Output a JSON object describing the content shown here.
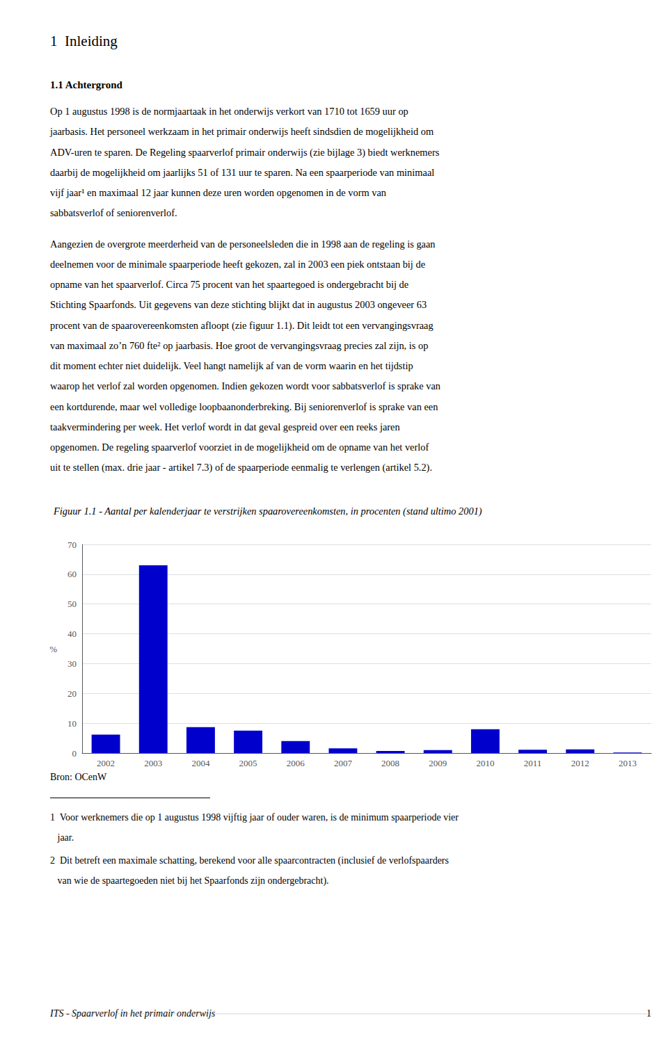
{
  "chart_data": {
    "type": "bar",
    "title": "Figuur 1.1 - Aantal per kalenderjaar te verstrijken spaarovereenkomsten, in procenten (stand ultimo 2001)",
    "categories": [
      "2002",
      "2003",
      "2004",
      "2005",
      "2006",
      "2007",
      "2008",
      "2009",
      "2010",
      "2011",
      "2012",
      "2013"
    ],
    "values": [
      6.2,
      63.0,
      8.7,
      7.5,
      4.0,
      1.6,
      0.7,
      1.0,
      8.0,
      1.1,
      1.2,
      0.2
    ],
    "color": "#0000cc",
    "ylabel": "%",
    "ylim": [
      0,
      70
    ],
    "yticks": [
      0,
      10,
      20,
      30,
      40,
      50,
      60,
      70
    ],
    "grid": true,
    "annotations": [
      "1  Inleiding",
      "1.1 Achtergrond",
      "Op 1 augustus 1998 is de normjaartaak in het onderwijs verkort van 1710 tot 1659 uur op",
      "jaarbasis. Het personeel werkzaam in het primair onderwijs heeft sindsdien de mogelijkheid om",
      "ADV-uren te sparen. De Regeling spaarverlof primair onderwijs (zie bijlage 3) biedt werknemers",
      "daarbij de mogelijkheid om jaarlijks 51 of 131 uur te sparen. Na een spaarperiode van minimaal",
      "vijf jaar¹ en maximaal 12 jaar kunnen deze uren worden opgenomen in de vorm van",
      "sabbatsverlof of seniorenverlof.",
      "Aangezien de overgrote meerderheid van de personeelsleden die in 1998 aan de regeling is gaan",
      "deelnemen voor de minimale spaarperiode heeft gekozen, zal in 2003 een piek ontstaan bij de",
      "opname van het spaarverlof. Circa 75 procent van het spaartegoed is ondergebracht bij de",
      "Stichting Spaarfonds. Uit gegevens van deze stichting blijkt dat in augustus 2003 ongeveer 63",
      "procent van de spaarovereenkomsten afloopt (zie figuur 1.1). Dit leidt tot een vervangingsvraag",
      "van maximaal zo’n 760 fte² op jaarbasis. Hoe groot de vervangingsvraag precies zal zijn, is op",
      "dit moment echter niet duidelijk. Veel hangt namelijk af van de vorm waarin en het tijdstip",
      "waarop het verlof zal worden opgenomen. Indien gekozen wordt voor sabbatsverlof is sprake van",
      "een kortdurende, maar wel volledige loopbaanonderbreking. Bij seniorenverlof is sprake van een",
      "taakvermindering per week. Het verlof wordt in dat geval gespreid over een reeks jaren",
      "opgenomen. De regeling spaarverlof voorziet in de mogelijkheid om de opname van het verlof",
      "uit te stellen (max. drie jaar - artikel 7.3) of de spaarperiode eenmalig te verlengen (artikel 5.2).",
      "Bron: OCenW",
      "1  Voor werknemers die op 1 augustus 1998 vijftig jaar of ouder waren, is de minimum spaarperiode vier",
      "   jaar.",
      "2  Dit betreft een maximale schatting, berekend voor alle spaarcontracten (inclusief de verlofspaarders",
      "   van wie de spaartegoeden niet bij het Spaarfonds zijn ondergebracht).",
      "ITS - Spaarverlof in het primair onderwijs",
      "1"
    ]
  }
}
